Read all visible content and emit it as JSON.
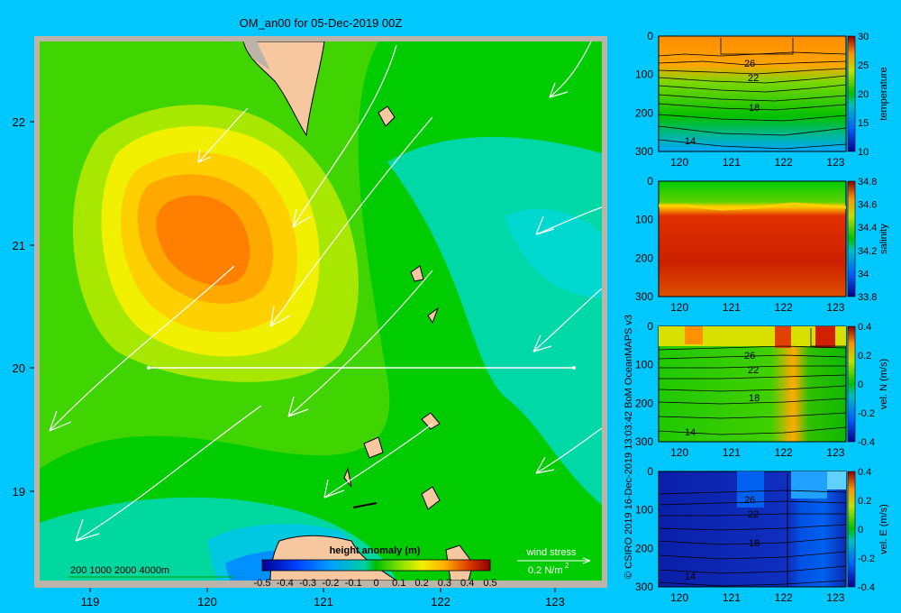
{
  "main_map": {
    "title": "OM_an00 for 05-Dec-2019 00Z",
    "x_ticks": [
      "119",
      "120",
      "121",
      "122",
      "123"
    ],
    "y_ticks": [
      "22",
      "21",
      "20",
      "19"
    ],
    "legend_title": "height anomaly (m)",
    "legend_ticks": [
      "-0.5",
      "-0.4",
      "-0.3",
      "-0.2",
      "-0.1",
      "0",
      "0.1",
      "0.2",
      "0.3",
      "0.4",
      "0.5"
    ],
    "depth_scale": "200  1000  2000  4000m",
    "wind_label": "wind stress",
    "wind_scale": "0.2 N/m",
    "wind_scale_sup": "2"
  },
  "credit": "© CSIRO 2019  16-Dec-2019 13:03:42 BoM OceanMAPS v3",
  "colors": {
    "background": "#00c8ff",
    "land": "#f7c8a0",
    "frame": "#bcb4a8"
  },
  "chart_data": [
    {
      "type": "heatmap",
      "title": "OM_an00 for 05-Dec-2019 00Z",
      "variable": "height anomaly (m)",
      "x_range": [
        118.5,
        123.5
      ],
      "y_range": [
        18.3,
        22.7
      ],
      "colorbar_range": [
        -0.5,
        0.5
      ],
      "colorbar_ticks": [
        -0.5,
        -0.4,
        -0.3,
        -0.2,
        -0.1,
        0,
        0.1,
        0.2,
        0.3,
        0.4,
        0.5
      ],
      "features": {
        "anomaly_maximum": {
          "lon": 120.3,
          "lat": 21.0,
          "value": 0.35
        },
        "anomaly_minimum": {
          "lon": 120.5,
          "lat": 18.6,
          "value": -0.2
        },
        "section_line": {
          "lon": [
            119.5,
            123.2
          ],
          "lat": 20.0
        }
      }
    },
    {
      "type": "heatmap",
      "ylabel": "temperature",
      "x_ticks": [
        120,
        121,
        122,
        123
      ],
      "y_ticks": [
        0,
        100,
        200,
        300
      ],
      "colorbar_ticks": [
        10,
        15,
        20,
        25,
        30
      ],
      "contour_labels": [
        "26",
        "22",
        "18",
        "14"
      ]
    },
    {
      "type": "heatmap",
      "ylabel": "salinity",
      "x_ticks": [
        120,
        121,
        122,
        123
      ],
      "y_ticks": [
        0,
        100,
        200,
        300
      ],
      "colorbar_ticks": [
        33.8,
        34,
        34.2,
        34.4,
        34.6,
        34.8
      ]
    },
    {
      "type": "heatmap",
      "ylabel": "vel. N (m/s)",
      "x_ticks": [
        120,
        121,
        122,
        123
      ],
      "y_ticks": [
        0,
        100,
        200,
        300
      ],
      "colorbar_ticks": [
        -0.4,
        -0.2,
        0,
        0.2,
        0.4
      ],
      "contour_labels": [
        "26",
        "22",
        "18",
        "14"
      ]
    },
    {
      "type": "heatmap",
      "ylabel": "vel. E (m/s)",
      "x_ticks": [
        120,
        121,
        122,
        123
      ],
      "y_ticks": [
        0,
        100,
        200,
        300
      ],
      "colorbar_ticks": [
        -0.4,
        -0.2,
        0,
        0.2,
        0.4
      ],
      "contour_labels": [
        "26",
        "22",
        "18",
        "14"
      ]
    }
  ]
}
